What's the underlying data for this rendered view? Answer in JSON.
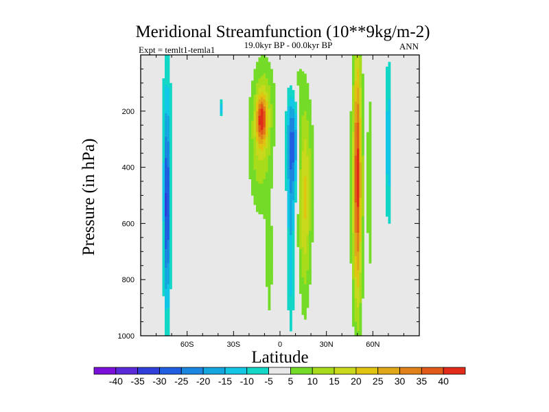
{
  "chart_data": {
    "type": "heatmap",
    "title": "Meridional Streamfunction (10**9kg/m-2)",
    "subtitle_left": "Expt = temlt1-temla1",
    "subtitle_center": "19.0kyr BP - 00.0kyr BP",
    "subtitle_right": "ANN",
    "xlabel": "Latitude",
    "ylabel": "Pressure (in hPa)",
    "xlim": [
      -90,
      90
    ],
    "ylim": [
      1000,
      0
    ],
    "x_ticks": [
      {
        "value": -60,
        "label": "60S"
      },
      {
        "value": -30,
        "label": "30S"
      },
      {
        "value": 0,
        "label": "0"
      },
      {
        "value": 30,
        "label": "30N"
      },
      {
        "value": 60,
        "label": "60N"
      }
    ],
    "y_ticks": [
      {
        "value": 200,
        "label": "200"
      },
      {
        "value": 400,
        "label": "400"
      },
      {
        "value": 600,
        "label": "600"
      },
      {
        "value": 800,
        "label": "800"
      },
      {
        "value": 1000,
        "label": "1000"
      }
    ],
    "levels": [
      -40,
      -35,
      -30,
      -25,
      -20,
      -15,
      -10,
      -5,
      5,
      10,
      15,
      20,
      25,
      30,
      35,
      40
    ],
    "colors": [
      "#7a10d8",
      "#5a2ad8",
      "#2f3ed8",
      "#1f5fe0",
      "#1a86e0",
      "#15a6e0",
      "#12c6e6",
      "#12d6c6",
      "#e8e8e8",
      "#74dc28",
      "#a8dc1a",
      "#c8d81a",
      "#e0c410",
      "#e0a818",
      "#e08018",
      "#e05a18",
      "#e02c18"
    ],
    "background_color": "#e8e8e8",
    "features": [
      {
        "name": "sh-high-lat-band",
        "center": [
          -73,
          450
        ],
        "half_width": [
          3.5,
          520
        ],
        "value": -10
      },
      {
        "name": "sh-high-lat-core",
        "center": [
          -73,
          560
        ],
        "half_width": [
          1.6,
          330
        ],
        "value": -15
      },
      {
        "name": "upper-lat-speck",
        "center": [
          -38,
          190
        ],
        "half_width": [
          1.5,
          30
        ],
        "value": -10
      },
      {
        "name": "sh-subtropic-broad",
        "center": [
          -13,
          300
        ],
        "half_width": [
          8,
          280
        ],
        "value": 10
      },
      {
        "name": "sh-subtropic-tall",
        "center": [
          -8,
          180
        ],
        "half_width": [
          6,
          180
        ],
        "value": 5
      },
      {
        "name": "sh-subtropic-column",
        "center": [
          -7,
          750
        ],
        "half_width": [
          3,
          280
        ],
        "value": 5
      },
      {
        "name": "sh-subtropic-core",
        "center": [
          -12,
          230
        ],
        "half_width": [
          3.5,
          90
        ],
        "value": 20
      },
      {
        "name": "eq-negative-upper",
        "center": [
          8,
          320
        ],
        "half_width": [
          4,
          230
        ],
        "value": -20
      },
      {
        "name": "eq-negative-column",
        "center": [
          7,
          700
        ],
        "half_width": [
          2.6,
          300
        ],
        "value": -10
      },
      {
        "name": "nh-positive-cell",
        "center": [
          16,
          550
        ],
        "half_width": [
          4,
          390
        ],
        "value": 10
      },
      {
        "name": "nh-tropic-broad",
        "center": [
          16,
          420
        ],
        "half_width": [
          9,
          360
        ],
        "value": 5
      },
      {
        "name": "nh-column-top",
        "center": [
          10,
          100
        ],
        "half_width": [
          4,
          120
        ],
        "value": 5
      },
      {
        "name": "nh-midlat-band",
        "center": [
          50,
          480
        ],
        "half_width": [
          5,
          510
        ],
        "value": 10
      },
      {
        "name": "nh-midlat-core",
        "center": [
          50,
          420
        ],
        "half_width": [
          2.5,
          480
        ],
        "value": 20
      },
      {
        "name": "nh-midlat-flank",
        "center": [
          58,
          450
        ],
        "half_width": [
          2,
          470
        ],
        "value": 5
      },
      {
        "name": "nh-high-lat-band",
        "center": [
          70,
          310
        ],
        "half_width": [
          2.2,
          320
        ],
        "value": -10
      }
    ]
  },
  "colorbar": {
    "labels": [
      "-40",
      "-35",
      "-30",
      "-25",
      "-20",
      "-15",
      "-10",
      "-5",
      "5",
      "10",
      "15",
      "20",
      "25",
      "30",
      "35",
      "40"
    ]
  }
}
